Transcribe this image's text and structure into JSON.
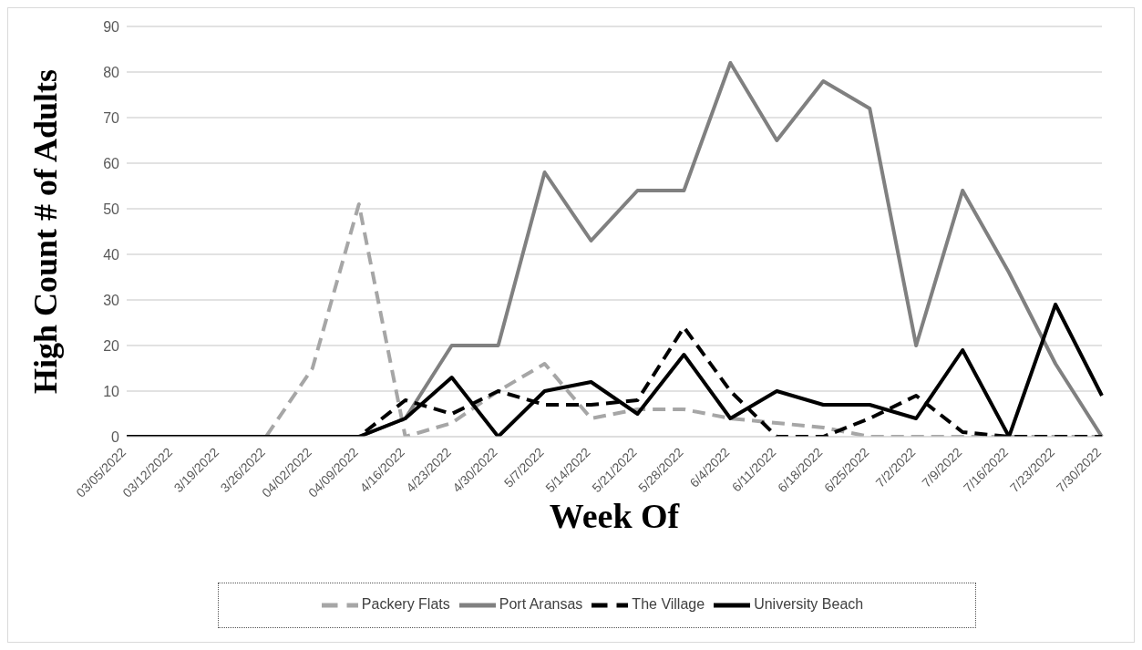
{
  "chart_data": {
    "type": "line",
    "xlabel": "Week Of",
    "ylabel": "High Count # of Adults",
    "categories": [
      "03/05/2022",
      "03/12/2022",
      "3/19/2022",
      "3/26/2022",
      "04/02/2022",
      "04/09/2022",
      "4/16/2022",
      "4/23/2022",
      "4/30/2022",
      "5/7/2022",
      "5/14/2022",
      "5/21/2022",
      "5/28/2022",
      "6/4/2022",
      "6/11/2022",
      "6/18/2022",
      "6/25/2022",
      "7/2/2022",
      "7/9/2022",
      "7/16/2022",
      "7/23/2022",
      "7/30/2022"
    ],
    "series": [
      {
        "name": "Packery Flats",
        "color": "#a6a6a6",
        "line_style": "dashed",
        "values": [
          0,
          0,
          0,
          0,
          15,
          51,
          0,
          3,
          10,
          16,
          4,
          6,
          6,
          4,
          3,
          2,
          0,
          0,
          0,
          0,
          0,
          0
        ]
      },
      {
        "name": "Port Aransas",
        "color": "#808080",
        "line_style": "solid",
        "values": [
          0,
          0,
          0,
          0,
          0,
          0,
          4,
          20,
          20,
          58,
          43,
          54,
          54,
          82,
          65,
          78,
          72,
          20,
          54,
          36,
          16,
          0
        ]
      },
      {
        "name": "The Village",
        "color": "#000000",
        "line_style": "dashed",
        "values": [
          0,
          0,
          0,
          0,
          0,
          0,
          8,
          5,
          10,
          7,
          7,
          8,
          24,
          10,
          0,
          0,
          4,
          9,
          1,
          0,
          0,
          0
        ]
      },
      {
        "name": "University Beach",
        "color": "#000000",
        "line_style": "solid",
        "values": [
          0,
          0,
          0,
          0,
          0,
          0,
          4,
          13,
          0,
          10,
          12,
          5,
          18,
          4,
          10,
          7,
          7,
          4,
          19,
          0,
          29,
          9
        ]
      }
    ],
    "ylim": [
      0,
      90
    ],
    "yticks": [
      0,
      10,
      20,
      30,
      40,
      50,
      60,
      70,
      80,
      90
    ],
    "grid": "y",
    "legend": "bottom",
    "marker": "none"
  }
}
